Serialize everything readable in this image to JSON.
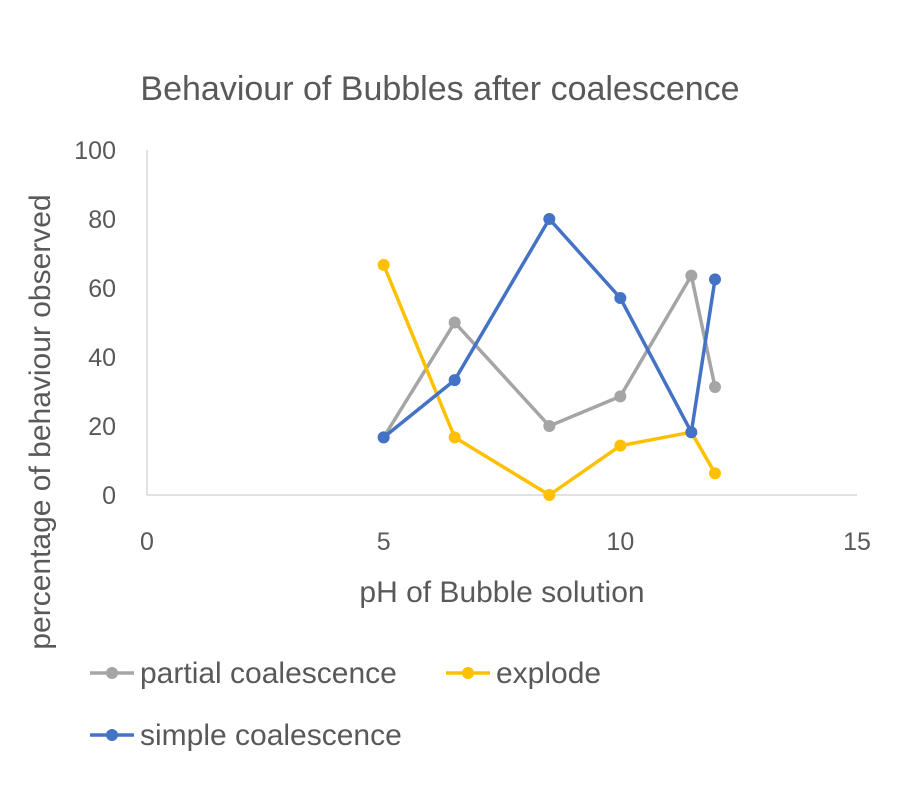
{
  "chart_data": {
    "type": "scatter",
    "title": "Behaviour of Bubbles after coalescence",
    "xlabel": "pH of Bubble solution",
    "ylabel": "percentage of behaviour observed",
    "xlim": [
      0,
      15
    ],
    "ylim": [
      0,
      100
    ],
    "xticks": [
      0,
      5,
      10,
      15
    ],
    "yticks": [
      0,
      20,
      40,
      60,
      80,
      100
    ],
    "grid": false,
    "legend_position": "bottom",
    "series": [
      {
        "name": "partial coalescence",
        "color": "#A5A5A5",
        "x": [
          5,
          6.5,
          8.5,
          10,
          11.5,
          12
        ],
        "y": [
          16.7,
          50,
          20,
          28.6,
          63.6,
          31.3
        ]
      },
      {
        "name": "explode",
        "color": "#FFC000",
        "x": [
          5,
          6.5,
          8.5,
          10,
          11.5,
          12
        ],
        "y": [
          66.7,
          16.7,
          0,
          14.3,
          18.2,
          6.3
        ]
      },
      {
        "name": "simple coalescence",
        "color": "#4472C4",
        "x": [
          5,
          6.5,
          8.5,
          10,
          11.5,
          12
        ],
        "y": [
          16.7,
          33.3,
          80,
          57.1,
          18.2,
          62.5
        ]
      }
    ]
  }
}
